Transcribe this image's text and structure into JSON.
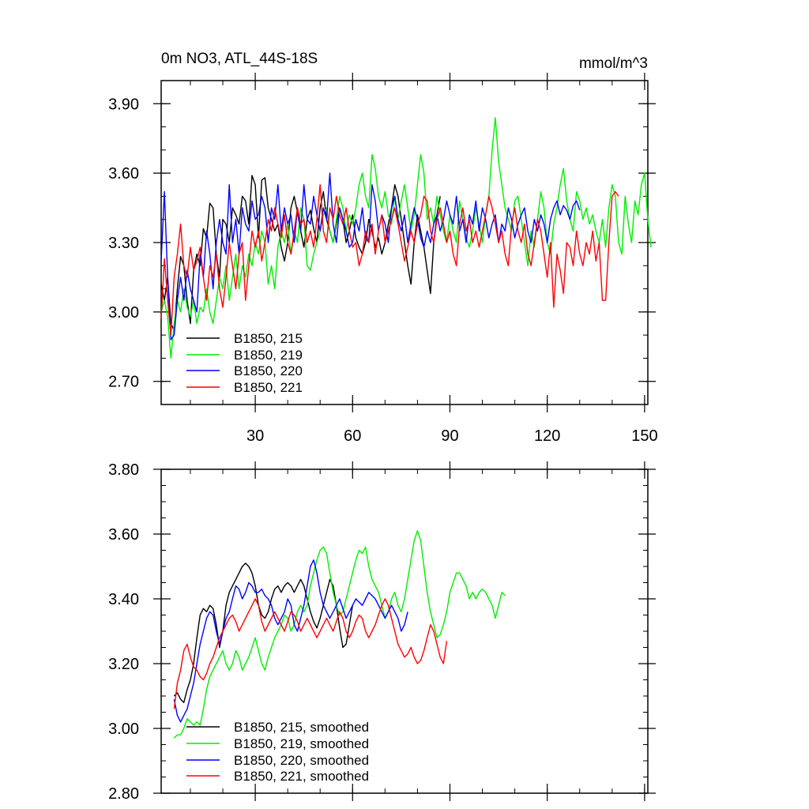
{
  "chart_data": [
    {
      "type": "line",
      "title": "0m NO3, ATL_44S-18S",
      "units": "mmol/m^3",
      "xlim": [
        1,
        151
      ],
      "ylim": [
        2.6,
        4.0
      ],
      "x_ticks": [
        30,
        60,
        90,
        120,
        150
      ],
      "y_ticks": [
        2.7,
        3.0,
        3.3,
        3.6,
        3.9
      ],
      "y_tick_labels": [
        "2.70",
        "3.00",
        "3.30",
        "3.60",
        "3.90"
      ],
      "legend": [
        "B1850, 215",
        "B1850, 219",
        "B1850, 220",
        "B1850, 221"
      ],
      "series": [
        {
          "name": "B1850, 215",
          "color": "#000000",
          "x_start": 1,
          "values": [
            3.12,
            3.05,
            3.15,
            2.95,
            2.92,
            3.1,
            3.24,
            3.2,
            3.05,
            2.95,
            3.18,
            3.25,
            3.2,
            3.36,
            3.32,
            3.47,
            3.45,
            3.25,
            3.15,
            3.4,
            3.38,
            3.3,
            3.45,
            3.42,
            3.38,
            3.5,
            3.48,
            3.38,
            3.59,
            3.55,
            3.32,
            3.57,
            3.58,
            3.45,
            3.4,
            3.35,
            3.38,
            3.28,
            3.22,
            3.3,
            3.45,
            3.5,
            3.43,
            3.35,
            3.28,
            3.4,
            3.44,
            3.36,
            3.3,
            3.45,
            3.52,
            3.4,
            3.35,
            3.3,
            3.38,
            3.45,
            3.4,
            3.3,
            3.35,
            3.42,
            3.32,
            3.28,
            3.25,
            3.3,
            3.4,
            3.35,
            3.28,
            3.32,
            3.25,
            3.3,
            3.38,
            3.45,
            3.55,
            3.5,
            3.4,
            3.3,
            3.2,
            3.12,
            3.3,
            3.42,
            3.35,
            3.28,
            3.18,
            3.08,
            3.3,
            3.42,
            3.5
          ]
        },
        {
          "name": "B1850, 219",
          "color": "#00ee00",
          "x_start": 1,
          "values": [
            3.0,
            3.05,
            2.98,
            2.8,
            2.95,
            3.05,
            3.0,
            3.1,
            3.02,
            2.98,
            3.05,
            2.95,
            3.02,
            3.0,
            3.1,
            3.0,
            2.95,
            3.05,
            3.15,
            3.1,
            3.2,
            3.05,
            3.15,
            3.25,
            3.1,
            3.2,
            3.15,
            3.25,
            3.2,
            3.3,
            3.25,
            3.35,
            3.3,
            3.12,
            3.2,
            3.1,
            3.28,
            3.35,
            3.3,
            3.38,
            3.25,
            3.35,
            3.3,
            3.45,
            3.4,
            3.2,
            3.18,
            3.25,
            3.3,
            3.35,
            3.42,
            3.45,
            3.35,
            3.3,
            3.4,
            3.5,
            3.45,
            3.35,
            3.42,
            3.38,
            3.45,
            3.55,
            3.6,
            3.5,
            3.45,
            3.68,
            3.62,
            3.5,
            3.45,
            3.52,
            3.42,
            3.38,
            3.5,
            3.4,
            3.48,
            3.55,
            3.45,
            3.35,
            3.42,
            3.55,
            3.68,
            3.6,
            3.4,
            3.45,
            3.38,
            3.5,
            3.42,
            3.35,
            3.3,
            3.42,
            3.35,
            3.3,
            3.48,
            3.4,
            3.32,
            3.28,
            3.35,
            3.45,
            3.38,
            3.3,
            3.42,
            3.5,
            3.7,
            3.84,
            3.65,
            3.55,
            3.45,
            3.4,
            3.35,
            3.48,
            3.5,
            3.4,
            3.3,
            3.2,
            3.35,
            3.28,
            3.4,
            3.52,
            3.45,
            3.3,
            3.25,
            3.38,
            3.45,
            3.55,
            3.62,
            3.48,
            3.4,
            3.35,
            3.52,
            3.48,
            3.4,
            3.45,
            3.38,
            3.42,
            3.35,
            3.3,
            3.4,
            3.28,
            3.45,
            3.55,
            3.5,
            3.3,
            3.25,
            3.5,
            3.38,
            3.3,
            3.48,
            3.42,
            3.55,
            3.6,
            3.4,
            3.28
          ]
        },
        {
          "name": "B1850, 220",
          "color": "#0000ff",
          "x_start": 1,
          "values": [
            3.22,
            3.52,
            3.15,
            2.88,
            2.9,
            3.05,
            3.15,
            3.05,
            3.18,
            3.1,
            3.05,
            3.0,
            3.25,
            3.15,
            3.35,
            3.25,
            3.1,
            3.3,
            3.4,
            3.3,
            3.25,
            3.55,
            3.3,
            3.4,
            3.25,
            3.45,
            3.38,
            3.35,
            3.48,
            3.4,
            3.42,
            3.5,
            3.45,
            3.3,
            3.45,
            3.4,
            3.55,
            3.35,
            3.45,
            3.38,
            3.42,
            3.3,
            3.45,
            3.35,
            3.55,
            3.4,
            3.38,
            3.5,
            3.42,
            3.35,
            3.45,
            3.4,
            3.6,
            3.38,
            3.3,
            3.45,
            3.4,
            3.35,
            3.28,
            3.3,
            3.4,
            3.35,
            3.45,
            3.32,
            3.3,
            3.55,
            3.48,
            3.35,
            3.42,
            3.38,
            3.3,
            3.45,
            3.5,
            3.4,
            3.35,
            3.42,
            3.3,
            3.38,
            3.45,
            3.4,
            3.32,
            3.28,
            3.35,
            3.3,
            3.38,
            3.42,
            3.35,
            3.4,
            3.48,
            3.42,
            3.38,
            3.5,
            3.35,
            3.4,
            3.3,
            3.42,
            3.38,
            3.48,
            3.35,
            3.45,
            3.4,
            3.32,
            3.38,
            3.42,
            3.3,
            3.38,
            3.35,
            3.45,
            3.4,
            3.32,
            3.38,
            3.42,
            3.45,
            3.35,
            3.3,
            3.4,
            3.35,
            3.42,
            3.38,
            3.3,
            3.4,
            3.45,
            3.48,
            3.42,
            3.46,
            3.44,
            3.4,
            3.46,
            3.48,
            3.44
          ]
        },
        {
          "name": "B1850, 221",
          "color": "#ff0000",
          "x_start": 1,
          "values": [
            2.97,
            3.23,
            3.05,
            2.9,
            3.15,
            3.25,
            3.38,
            3.2,
            3.15,
            3.28,
            3.18,
            3.22,
            3.28,
            3.15,
            3.05,
            3.2,
            3.15,
            3.25,
            3.1,
            3.02,
            3.15,
            3.3,
            3.2,
            3.1,
            3.25,
            3.3,
            3.05,
            3.2,
            3.35,
            3.28,
            3.35,
            3.22,
            3.3,
            3.4,
            3.35,
            3.45,
            3.38,
            3.32,
            3.42,
            3.3,
            3.25,
            3.35,
            3.45,
            3.38,
            3.4,
            3.3,
            3.35,
            3.28,
            3.4,
            3.55,
            3.35,
            3.3,
            3.45,
            3.4,
            3.5,
            3.42,
            3.38,
            3.45,
            3.35,
            3.28,
            3.3,
            3.2,
            3.25,
            3.35,
            3.3,
            3.38,
            3.25,
            3.35,
            3.42,
            3.3,
            3.35,
            3.4,
            3.45,
            3.38,
            3.3,
            3.22,
            3.28,
            3.35,
            3.3,
            3.38,
            3.42,
            3.5,
            3.48,
            3.35,
            3.3,
            3.4,
            3.45,
            3.38,
            3.3,
            3.35,
            3.25,
            3.2,
            3.38,
            3.45,
            3.35,
            3.4,
            3.3,
            3.35,
            3.28,
            3.35,
            3.42,
            3.5,
            3.45,
            3.38,
            3.3,
            3.35,
            3.25,
            3.2,
            3.38,
            3.45,
            3.35,
            3.3,
            3.38,
            3.25,
            3.2,
            3.3,
            3.4,
            3.35,
            3.25,
            3.15,
            3.3,
            3.02,
            3.25,
            3.18,
            3.08,
            3.3,
            3.28,
            3.2,
            3.35,
            3.25,
            3.2,
            3.3,
            3.25,
            3.35,
            3.22,
            3.3,
            3.05,
            3.05,
            3.3,
            3.5,
            3.52,
            3.5
          ]
        }
      ]
    },
    {
      "type": "line",
      "title": "",
      "xlim": [
        1,
        151
      ],
      "ylim": [
        2.8,
        3.8
      ],
      "x_ticks": [
        30,
        60,
        90,
        120,
        150
      ],
      "y_ticks": [
        2.8,
        3.0,
        3.2,
        3.4,
        3.6,
        3.8
      ],
      "y_tick_labels": [
        "2.80",
        "3.00",
        "3.20",
        "3.40",
        "3.60",
        "3.80"
      ],
      "legend": [
        "B1850, 215, smoothed",
        "B1850, 219, smoothed",
        "B1850, 220, smoothed",
        "B1850, 221, smoothed"
      ],
      "series": [
        {
          "name": "B1850, 215, smoothed",
          "color": "#000000",
          "x_start": 5,
          "values": [
            3.1,
            3.11,
            3.09,
            3.08,
            3.12,
            3.15,
            3.2,
            3.28,
            3.35,
            3.37,
            3.36,
            3.38,
            3.37,
            3.32,
            3.25,
            3.3,
            3.38,
            3.42,
            3.44,
            3.46,
            3.48,
            3.5,
            3.51,
            3.5,
            3.48,
            3.44,
            3.38,
            3.35,
            3.34,
            3.36,
            3.4,
            3.43,
            3.44,
            3.42,
            3.44,
            3.45,
            3.44,
            3.42,
            3.44,
            3.46,
            3.44,
            3.4,
            3.36,
            3.33,
            3.31,
            3.34,
            3.38,
            3.42,
            3.46,
            3.44,
            3.38,
            3.31,
            3.25,
            3.26,
            3.32,
            3.38
          ]
        },
        {
          "name": "B1850, 219, smoothed",
          "color": "#00ee00",
          "x_start": 5,
          "values": [
            2.97,
            2.98,
            2.98,
            3.0,
            3.03,
            3.02,
            3.01,
            3.02,
            3.01,
            3.06,
            3.12,
            3.16,
            3.18,
            3.2,
            3.22,
            3.24,
            3.2,
            3.18,
            3.2,
            3.24,
            3.22,
            3.18,
            3.2,
            3.22,
            3.25,
            3.28,
            3.24,
            3.2,
            3.18,
            3.22,
            3.25,
            3.28,
            3.3,
            3.32,
            3.35,
            3.34,
            3.3,
            3.32,
            3.36,
            3.38,
            3.36,
            3.38,
            3.44,
            3.48,
            3.52,
            3.55,
            3.56,
            3.54,
            3.48,
            3.42,
            3.38,
            3.35,
            3.36,
            3.4,
            3.44,
            3.48,
            3.52,
            3.55,
            3.54,
            3.56,
            3.5,
            3.46,
            3.44,
            3.42,
            3.38,
            3.34,
            3.36,
            3.4,
            3.42,
            3.38,
            3.36,
            3.4,
            3.46,
            3.52,
            3.58,
            3.61,
            3.58,
            3.5,
            3.42,
            3.36,
            3.32,
            3.28,
            3.29,
            3.32,
            3.36,
            3.42,
            3.45,
            3.48,
            3.48,
            3.46,
            3.44,
            3.4,
            3.42,
            3.4,
            3.42,
            3.43,
            3.42,
            3.4,
            3.38,
            3.34,
            3.38,
            3.42,
            3.41
          ]
        },
        {
          "name": "B1850, 220, smoothed",
          "color": "#0000ff",
          "x_start": 5,
          "values": [
            3.09,
            3.04,
            3.02,
            3.04,
            3.06,
            3.1,
            3.14,
            3.2,
            3.26,
            3.3,
            3.34,
            3.36,
            3.35,
            3.3,
            3.26,
            3.3,
            3.34,
            3.36,
            3.4,
            3.44,
            3.43,
            3.4,
            3.42,
            3.45,
            3.44,
            3.42,
            3.42,
            3.43,
            3.41,
            3.4,
            3.38,
            3.34,
            3.32,
            3.34,
            3.36,
            3.4,
            3.38,
            3.32,
            3.3,
            3.34,
            3.38,
            3.44,
            3.5,
            3.52,
            3.48,
            3.42,
            3.38,
            3.36,
            3.34,
            3.36,
            3.38,
            3.4,
            3.37,
            3.34,
            3.36,
            3.38,
            3.4,
            3.39,
            3.38,
            3.4,
            3.42,
            3.41,
            3.4,
            3.38,
            3.36,
            3.34,
            3.36,
            3.38,
            3.36,
            3.34,
            3.3,
            3.32,
            3.36
          ]
        },
        {
          "name": "B1850, 221, smoothed",
          "color": "#ff0000",
          "x_start": 5,
          "values": [
            3.06,
            3.14,
            3.18,
            3.24,
            3.26,
            3.22,
            3.19,
            3.18,
            3.16,
            3.15,
            3.17,
            3.2,
            3.22,
            3.25,
            3.28,
            3.3,
            3.32,
            3.34,
            3.35,
            3.33,
            3.3,
            3.32,
            3.34,
            3.36,
            3.38,
            3.4,
            3.38,
            3.33,
            3.3,
            3.32,
            3.34,
            3.36,
            3.34,
            3.32,
            3.3,
            3.33,
            3.36,
            3.35,
            3.33,
            3.3,
            3.32,
            3.34,
            3.32,
            3.3,
            3.28,
            3.3,
            3.32,
            3.34,
            3.32,
            3.3,
            3.33,
            3.36,
            3.34,
            3.3,
            3.28,
            3.3,
            3.33,
            3.35,
            3.34,
            3.3,
            3.28,
            3.3,
            3.32,
            3.35,
            3.38,
            3.4,
            3.38,
            3.34,
            3.3,
            3.26,
            3.24,
            3.22,
            3.23,
            3.25,
            3.22,
            3.2,
            3.21,
            3.24,
            3.28,
            3.32,
            3.3,
            3.26,
            3.22,
            3.2,
            3.27
          ]
        }
      ]
    }
  ]
}
